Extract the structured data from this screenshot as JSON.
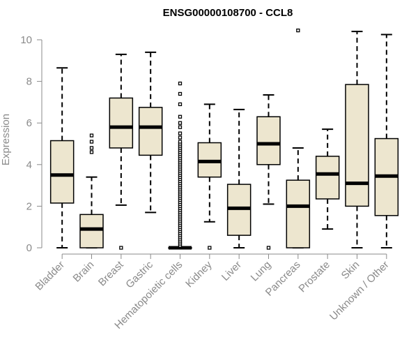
{
  "chart_data": {
    "type": "box",
    "title": "ENSG00000108700 - CCL8",
    "xlabel": "",
    "ylabel": "Expression",
    "ylim": [
      0,
      10.5
    ],
    "yticks": [
      0,
      2,
      4,
      6,
      8,
      10
    ],
    "grid": false,
    "legend": "none",
    "colors": {
      "box_fill": "#ede6cf",
      "box_stroke": "#000000",
      "median": "#000000",
      "axis": "#8a8a8a"
    },
    "categories": [
      "Bladder",
      "Brain",
      "Breast",
      "Gastric",
      "Hematopoietic cells",
      "Kidney",
      "Liver",
      "Lung",
      "Pancreas",
      "Prostate",
      "Skin",
      "Unknown / Other"
    ],
    "boxes": [
      {
        "category": "Bladder",
        "min": 0.0,
        "q1": 2.15,
        "median": 3.5,
        "q3": 5.15,
        "max": 8.65,
        "outliers": []
      },
      {
        "category": "Brain",
        "min": 0.0,
        "q1": 0.0,
        "median": 0.9,
        "q3": 1.6,
        "max": 3.4,
        "outliers": [
          4.6,
          4.8,
          5.1,
          5.4
        ]
      },
      {
        "category": "Breast",
        "min": 2.05,
        "q1": 4.8,
        "median": 5.8,
        "q3": 7.2,
        "max": 9.3,
        "outliers": [
          0.0
        ]
      },
      {
        "category": "Gastric",
        "min": 1.7,
        "q1": 4.45,
        "median": 5.8,
        "q3": 6.75,
        "max": 9.4,
        "outliers": []
      },
      {
        "category": "Hematopoietic cells",
        "min": 0.0,
        "q1": 0.0,
        "median": 0.0,
        "q3": 0.0,
        "max": 0.0,
        "outliers": [
          0.1,
          0.2,
          0.3,
          0.4,
          0.5,
          0.6,
          0.7,
          0.8,
          0.9,
          1.0,
          1.1,
          1.2,
          1.3,
          1.4,
          1.5,
          1.6,
          1.7,
          1.8,
          1.9,
          2.0,
          2.1,
          2.2,
          2.3,
          2.4,
          2.5,
          2.6,
          2.7,
          2.8,
          2.9,
          3.0,
          3.1,
          3.2,
          3.3,
          3.4,
          3.5,
          3.6,
          3.7,
          3.8,
          3.9,
          4.0,
          4.1,
          4.2,
          4.3,
          4.4,
          4.5,
          4.6,
          4.7,
          4.8,
          4.9,
          5.0,
          5.1,
          5.3,
          5.5,
          5.8,
          6.0,
          6.3,
          6.9,
          7.4,
          7.9
        ]
      },
      {
        "category": "Kidney",
        "min": 1.25,
        "q1": 3.4,
        "median": 4.15,
        "q3": 5.05,
        "max": 6.9,
        "outliers": [
          0.0
        ]
      },
      {
        "category": "Liver",
        "min": 0.0,
        "q1": 0.6,
        "median": 1.9,
        "q3": 3.05,
        "max": 6.65,
        "outliers": []
      },
      {
        "category": "Lung",
        "min": 2.1,
        "q1": 4.0,
        "median": 5.0,
        "q3": 6.3,
        "max": 7.35,
        "outliers": [
          0.0
        ]
      },
      {
        "category": "Pancreas",
        "min": 0.0,
        "q1": 0.0,
        "median": 2.0,
        "q3": 3.25,
        "max": 4.8,
        "outliers": [
          10.45
        ]
      },
      {
        "category": "Prostate",
        "min": 0.9,
        "q1": 2.35,
        "median": 3.55,
        "q3": 4.4,
        "max": 5.7,
        "outliers": []
      },
      {
        "category": "Skin",
        "min": 0.0,
        "q1": 2.0,
        "median": 3.1,
        "q3": 7.85,
        "max": 10.4,
        "outliers": []
      },
      {
        "category": "Unknown / Other",
        "min": 0.0,
        "q1": 1.55,
        "median": 3.45,
        "q3": 5.25,
        "max": 10.25,
        "outliers": []
      }
    ]
  }
}
